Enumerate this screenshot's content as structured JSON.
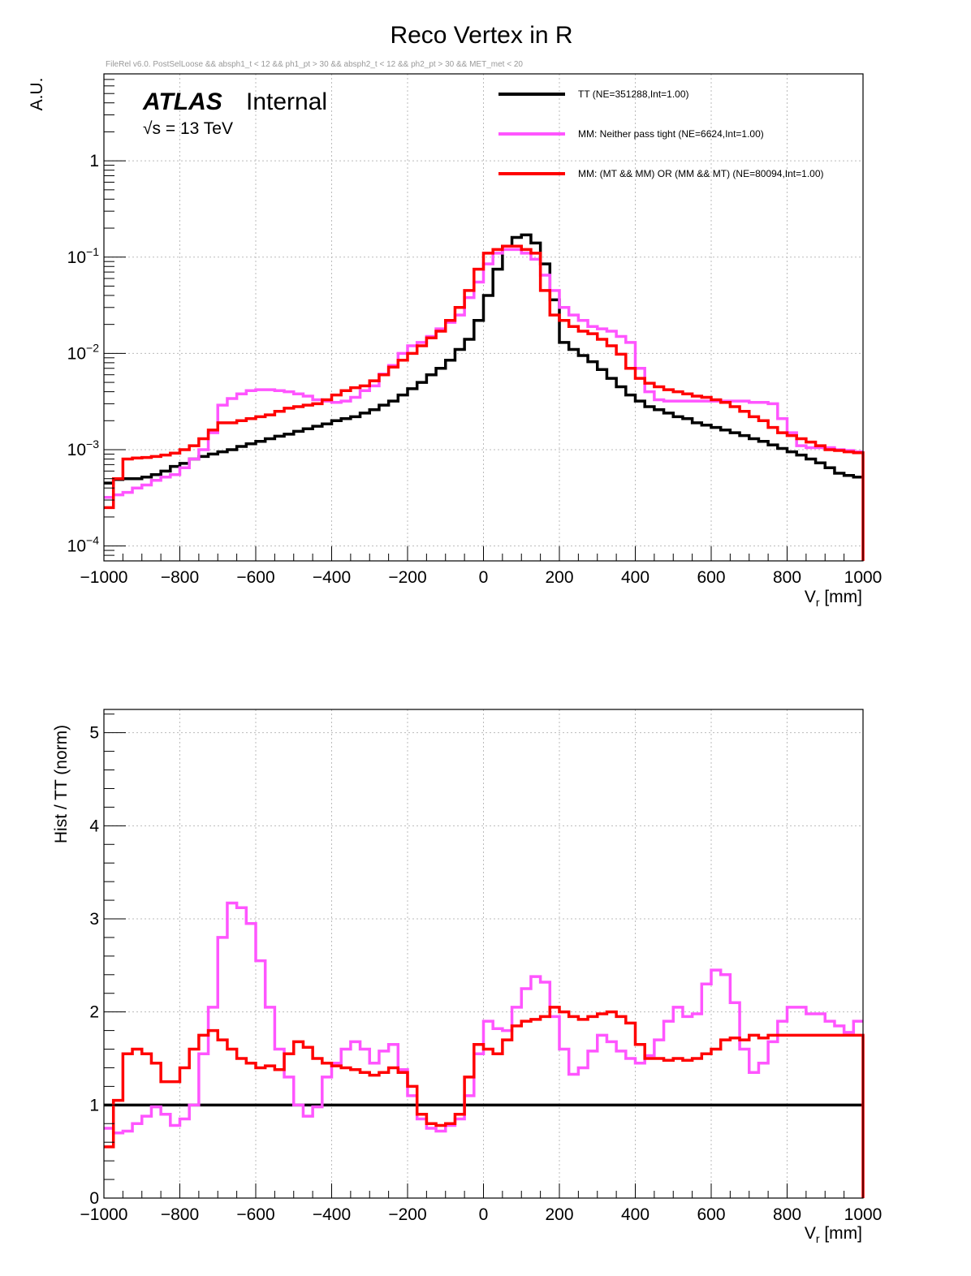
{
  "chart_data": [
    {
      "type": "line",
      "title": "Reco Vertex in R",
      "subtitle": "FileRel v6.0. PostSelLoose && absph1_t < 12 && ph1_pt > 30 && absph2_t < 12 && ph2_pt > 30 && MET_met < 20",
      "atlas_label": "ATLAS",
      "atlas_sub": "Internal",
      "energy_label": "√s = 13 TeV",
      "ylabel": "A.U.",
      "xlabel": "V",
      "xlabel_sub": "r",
      "xlabel_unit": " [mm]",
      "yscale": "log",
      "xlim": [
        -1000,
        1000
      ],
      "ylim": [
        7e-05,
        8
      ],
      "xticks": [
        -1000,
        -800,
        -600,
        -400,
        -200,
        0,
        200,
        400,
        600,
        800,
        1000
      ],
      "xtick_labels": [
        "−1000",
        "−800",
        "−600",
        "−400",
        "−200",
        "0",
        "200",
        "400",
        "600",
        "800",
        "1000"
      ],
      "yticks": [
        {
          "value": 0.0001,
          "base": "10",
          "exp": "−4"
        },
        {
          "value": 0.001,
          "base": "10",
          "exp": "−3"
        },
        {
          "value": 0.01,
          "base": "10",
          "exp": "−2"
        },
        {
          "value": 0.1,
          "base": "10",
          "exp": "−1"
        },
        {
          "value": 1,
          "base": "1",
          "exp": ""
        }
      ],
      "grid": true,
      "legend_position": "top-right",
      "bin_edges_start": -1000,
      "bin_width": 25,
      "series": [
        {
          "name": "TT (NE=351288,Int=1.00)",
          "color": "#000000",
          "values": [
            0.00045,
            0.00049,
            0.0005,
            0.0005,
            0.00052,
            0.00055,
            0.0006,
            0.00067,
            0.00072,
            0.0008,
            0.00085,
            0.0009,
            0.00095,
            0.001,
            0.00108,
            0.00115,
            0.00122,
            0.0013,
            0.00138,
            0.00145,
            0.00155,
            0.00165,
            0.00175,
            0.00185,
            0.002,
            0.0021,
            0.0022,
            0.0024,
            0.0026,
            0.0029,
            0.0032,
            0.0037,
            0.0043,
            0.005,
            0.006,
            0.007,
            0.0085,
            0.011,
            0.014,
            0.022,
            0.04,
            0.075,
            0.13,
            0.16,
            0.17,
            0.14,
            0.085,
            0.036,
            0.013,
            0.011,
            0.0095,
            0.0082,
            0.0068,
            0.0055,
            0.0045,
            0.0037,
            0.0032,
            0.0028,
            0.0026,
            0.0024,
            0.0022,
            0.0021,
            0.0019,
            0.0018,
            0.0017,
            0.0016,
            0.0015,
            0.0014,
            0.0013,
            0.00122,
            0.00112,
            0.00103,
            0.00095,
            0.00088,
            0.0008,
            0.00073,
            0.00065,
            0.00057,
            0.00054,
            0.00052
          ]
        },
        {
          "name": "MM: Neither pass tight (NE=6624,Int=1.00)",
          "color": "#ff55ff",
          "values": [
            0.00032,
            0.00034,
            0.00036,
            0.0004,
            0.00043,
            0.00048,
            0.00052,
            0.00055,
            0.00065,
            0.0008,
            0.001,
            0.0015,
            0.0029,
            0.0034,
            0.0038,
            0.0041,
            0.0042,
            0.0042,
            0.0041,
            0.004,
            0.0038,
            0.0036,
            0.0033,
            0.0032,
            0.0031,
            0.0032,
            0.0035,
            0.0041,
            0.0046,
            0.0061,
            0.0075,
            0.01,
            0.012,
            0.013,
            0.015,
            0.018,
            0.021,
            0.025,
            0.038,
            0.055,
            0.085,
            0.11,
            0.12,
            0.12,
            0.11,
            0.095,
            0.065,
            0.045,
            0.03,
            0.025,
            0.022,
            0.019,
            0.018,
            0.017,
            0.015,
            0.013,
            0.007,
            0.004,
            0.0033,
            0.0032,
            0.0032,
            0.0032,
            0.0032,
            0.0032,
            0.0032,
            0.0032,
            0.0032,
            0.0032,
            0.0031,
            0.0031,
            0.003,
            0.0021,
            0.0015,
            0.0011,
            0.00105,
            0.00105,
            0.00105,
            0.001,
            0.00098,
            0.00095
          ]
        },
        {
          "name": "MM: (MT && MM) OR (MM && MT) (NE=80094,Int=1.00)",
          "color": "#ff0000",
          "values": [
            0.00025,
            0.0005,
            0.0008,
            0.00082,
            0.00083,
            0.00085,
            0.00088,
            0.00092,
            0.001,
            0.0011,
            0.0013,
            0.0016,
            0.0019,
            0.0019,
            0.002,
            0.0021,
            0.0022,
            0.0023,
            0.0025,
            0.0027,
            0.0028,
            0.0029,
            0.003,
            0.0033,
            0.0037,
            0.0041,
            0.0044,
            0.0046,
            0.0052,
            0.006,
            0.0072,
            0.0085,
            0.01,
            0.012,
            0.0145,
            0.017,
            0.022,
            0.03,
            0.045,
            0.075,
            0.11,
            0.12,
            0.13,
            0.13,
            0.12,
            0.11,
            0.045,
            0.025,
            0.022,
            0.019,
            0.017,
            0.016,
            0.014,
            0.012,
            0.0098,
            0.007,
            0.0055,
            0.0049,
            0.0045,
            0.0042,
            0.004,
            0.0038,
            0.0036,
            0.0035,
            0.0033,
            0.0031,
            0.0028,
            0.0025,
            0.0022,
            0.002,
            0.0017,
            0.0015,
            0.0014,
            0.0013,
            0.0012,
            0.0011,
            0.001,
            0.00098,
            0.00095,
            0.00093
          ]
        }
      ]
    },
    {
      "type": "line",
      "title": "",
      "ylabel": "Hist / TT (norm)",
      "xlabel": "V",
      "xlabel_sub": "r",
      "xlabel_unit": " [mm]",
      "yscale": "linear",
      "xlim": [
        -1000,
        1000
      ],
      "ylim": [
        0,
        5.25
      ],
      "xticks": [
        -1000,
        -800,
        -600,
        -400,
        -200,
        0,
        200,
        400,
        600,
        800,
        1000
      ],
      "xtick_labels": [
        "−1000",
        "−800",
        "−600",
        "−400",
        "−200",
        "0",
        "200",
        "400",
        "600",
        "800",
        "1000"
      ],
      "yticks": [
        {
          "value": 0,
          "base": "0",
          "exp": ""
        },
        {
          "value": 1,
          "base": "1",
          "exp": ""
        },
        {
          "value": 2,
          "base": "2",
          "exp": ""
        },
        {
          "value": 3,
          "base": "3",
          "exp": ""
        },
        {
          "value": 4,
          "base": "4",
          "exp": ""
        },
        {
          "value": 5,
          "base": "5",
          "exp": ""
        }
      ],
      "grid": true,
      "bin_edges_start": -1000,
      "bin_width": 25,
      "series": [
        {
          "name": "TT",
          "color": "#000000",
          "values": [
            1,
            1,
            1,
            1,
            1,
            1,
            1,
            1,
            1,
            1,
            1,
            1,
            1,
            1,
            1,
            1,
            1,
            1,
            1,
            1,
            1,
            1,
            1,
            1,
            1,
            1,
            1,
            1,
            1,
            1,
            1,
            1,
            1,
            1,
            1,
            1,
            1,
            1,
            1,
            1,
            1,
            1,
            1,
            1,
            1,
            1,
            1,
            1,
            1,
            1,
            1,
            1,
            1,
            1,
            1,
            1,
            1,
            1,
            1,
            1,
            1,
            1,
            1,
            1,
            1,
            1,
            1,
            1,
            1,
            1,
            1,
            1,
            1,
            1,
            1,
            1,
            1,
            1,
            1,
            1
          ]
        },
        {
          "name": "Neither pass tight",
          "color": "#ff55ff",
          "values": [
            0.75,
            0.7,
            0.72,
            0.8,
            0.88,
            0.98,
            0.9,
            0.78,
            0.85,
            1.0,
            1.55,
            2.05,
            2.8,
            3.17,
            3.12,
            2.95,
            2.55,
            2.05,
            1.6,
            1.3,
            1.0,
            0.88,
            0.98,
            1.3,
            1.45,
            1.6,
            1.68,
            1.6,
            1.45,
            1.58,
            1.65,
            1.38,
            1.1,
            0.85,
            0.75,
            0.72,
            0.78,
            0.85,
            1.1,
            1.55,
            1.9,
            1.82,
            1.8,
            2.05,
            2.25,
            2.38,
            2.32,
            1.95,
            1.6,
            1.33,
            1.4,
            1.58,
            1.75,
            1.68,
            1.58,
            1.5,
            1.45,
            1.53,
            1.7,
            1.9,
            2.05,
            1.95,
            1.98,
            2.3,
            2.45,
            2.4,
            2.1,
            1.6,
            1.35,
            1.45,
            1.68,
            1.9,
            2.05,
            2.05,
            1.98,
            1.98,
            1.9,
            1.85,
            1.78,
            1.9
          ]
        },
        {
          "name": "(MT && MM) OR (MM && MT)",
          "color": "#ff0000",
          "values": [
            0.55,
            1.05,
            1.55,
            1.6,
            1.55,
            1.45,
            1.25,
            1.25,
            1.4,
            1.6,
            1.75,
            1.8,
            1.7,
            1.6,
            1.5,
            1.45,
            1.4,
            1.42,
            1.38,
            1.55,
            1.68,
            1.62,
            1.5,
            1.45,
            1.42,
            1.4,
            1.38,
            1.35,
            1.32,
            1.35,
            1.4,
            1.35,
            1.2,
            0.9,
            0.8,
            0.78,
            0.8,
            0.9,
            1.3,
            1.65,
            1.6,
            1.55,
            1.7,
            1.85,
            1.9,
            1.92,
            1.95,
            2.05,
            2.0,
            1.95,
            1.92,
            1.95,
            1.98,
            2.0,
            1.95,
            1.88,
            1.65,
            1.5,
            1.5,
            1.48,
            1.5,
            1.48,
            1.5,
            1.55,
            1.6,
            1.7,
            1.72,
            1.7,
            1.75,
            1.72,
            1.75,
            1.75,
            1.75,
            1.75,
            1.75,
            1.75,
            1.75,
            1.75,
            1.75,
            1.75
          ]
        }
      ]
    }
  ]
}
